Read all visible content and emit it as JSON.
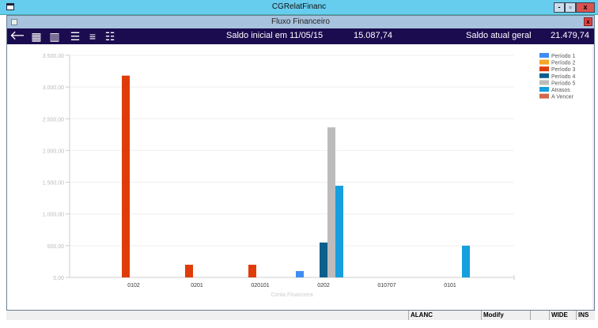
{
  "app_title": "CGRelatFinanc",
  "window_title": "Fluxo Financeiro",
  "window_buttons": {
    "minimize": "-",
    "restore": "▫",
    "close": "x"
  },
  "inner_close": "x",
  "toolbar": {
    "icons": [
      "back-arrow-icon",
      "calendar-icon",
      "bar-chart-icon",
      "checklist-icon",
      "list-icon",
      "numbered-list-icon"
    ],
    "saldo_inicial_label": "Saldo inicial em  11/05/15",
    "saldo_inicial_value": "15.087,74",
    "saldo_atual_label": "Saldo atual geral",
    "saldo_atual_value": "21.479,74"
  },
  "chart_data": {
    "type": "bar",
    "xlabel": "Conta Financeira",
    "ylabel": "",
    "ylim": [
      0,
      3500
    ],
    "yticks": [
      "0,00",
      "500,00",
      "1.000,00",
      "1.500,00",
      "2.000,00",
      "2.500,00",
      "3.000,00",
      "3.500,00"
    ],
    "grid": true,
    "legend_position": "top-right",
    "categories": [
      "0102",
      "0201",
      "020101",
      "0202",
      "010707",
      "0101"
    ],
    "series": [
      {
        "name": "Período 1",
        "color": "#3d8ef0",
        "values": [
          0,
          0,
          0,
          100,
          0,
          0
        ]
      },
      {
        "name": "Período 2",
        "color": "#f5a623",
        "values": [
          0,
          0,
          0,
          0,
          0,
          0
        ]
      },
      {
        "name": "Período 3",
        "color": "#e03c0a",
        "values": [
          3180,
          200,
          200,
          0,
          0,
          0
        ]
      },
      {
        "name": "Período 4",
        "color": "#0d5f8c",
        "values": [
          0,
          0,
          0,
          550,
          0,
          0
        ]
      },
      {
        "name": "Período 5",
        "color": "#bcbcbc",
        "values": [
          0,
          0,
          0,
          2365,
          0,
          0
        ]
      },
      {
        "name": "Atrasos",
        "color": "#159fdf",
        "values": [
          0,
          0,
          0,
          1445,
          0,
          500
        ]
      },
      {
        "name": "A Vencer",
        "color": "#d2674a",
        "values": [
          0,
          0,
          0,
          0,
          0,
          0
        ]
      }
    ]
  },
  "status_bar": {
    "cells": [
      "ALANC",
      "Modify",
      "",
      "WIDE",
      "INS"
    ]
  }
}
